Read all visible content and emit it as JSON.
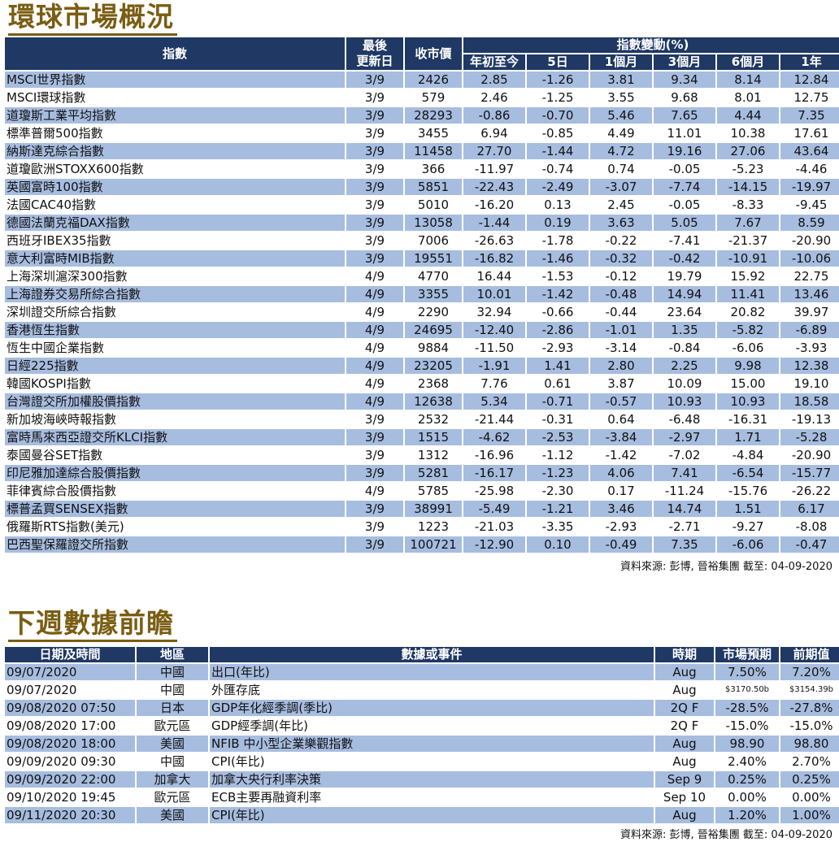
{
  "market": {
    "title": "環球市場概況",
    "headers": {
      "index": "指數",
      "last_update": "最後更新日",
      "last_update_l1": "最後",
      "last_update_l2": "更新日",
      "close": "收市價",
      "change_group": "指數變動(%)",
      "ytd": "年初至今",
      "d5": "5日",
      "m1": "1個月",
      "m3": "3個月",
      "m6": "6個月",
      "y1": "1年"
    },
    "rows": [
      [
        "MSCI世界指數",
        "3/9",
        "2426",
        "2.85",
        "-1.26",
        "3.81",
        "9.34",
        "8.14",
        "12.84"
      ],
      [
        "MSCI環球指數",
        "3/9",
        "579",
        "2.46",
        "-1.25",
        "3.55",
        "9.68",
        "8.01",
        "12.75"
      ],
      [
        "道瓊斯工業平均指數",
        "3/9",
        "28293",
        "-0.86",
        "-0.70",
        "5.46",
        "7.65",
        "4.44",
        "7.35"
      ],
      [
        "標準普爾500指數",
        "3/9",
        "3455",
        "6.94",
        "-0.85",
        "4.49",
        "11.01",
        "10.38",
        "17.61"
      ],
      [
        "納斯達克綜合指數",
        "3/9",
        "11458",
        "27.70",
        "-1.44",
        "4.72",
        "19.16",
        "27.06",
        "43.64"
      ],
      [
        "道瓊歐洲STOXX600指數",
        "3/9",
        "366",
        "-11.97",
        "-0.74",
        "0.74",
        "-0.05",
        "-5.23",
        "-4.46"
      ],
      [
        "英國富時100指數",
        "3/9",
        "5851",
        "-22.43",
        "-2.49",
        "-3.07",
        "-7.74",
        "-14.15",
        "-19.97"
      ],
      [
        "法國CAC40指數",
        "3/9",
        "5010",
        "-16.20",
        "0.13",
        "2.45",
        "-0.05",
        "-8.33",
        "-9.45"
      ],
      [
        "德國法蘭克福DAX指數",
        "3/9",
        "13058",
        "-1.44",
        "0.19",
        "3.63",
        "5.05",
        "7.67",
        "8.59"
      ],
      [
        "西班牙IBEX35指數",
        "3/9",
        "7006",
        "-26.63",
        "-1.78",
        "-0.22",
        "-7.41",
        "-21.37",
        "-20.90"
      ],
      [
        "意大利富時MIB指數",
        "3/9",
        "19551",
        "-16.82",
        "-1.46",
        "-0.32",
        "-0.42",
        "-10.91",
        "-10.06"
      ],
      [
        "上海深圳滬深300指數",
        "4/9",
        "4770",
        "16.44",
        "-1.53",
        "-0.12",
        "19.79",
        "15.92",
        "22.75"
      ],
      [
        "上海證券交易所綜合指數",
        "4/9",
        "3355",
        "10.01",
        "-1.42",
        "-0.48",
        "14.94",
        "11.41",
        "13.46"
      ],
      [
        "深圳證交所綜合指數",
        "4/9",
        "2290",
        "32.94",
        "-0.66",
        "-0.44",
        "23.64",
        "20.82",
        "39.97"
      ],
      [
        "香港恆生指數",
        "4/9",
        "24695",
        "-12.40",
        "-2.86",
        "-1.01",
        "1.35",
        "-5.82",
        "-6.89"
      ],
      [
        "恆生中國企業指數",
        "4/9",
        "9884",
        "-11.50",
        "-2.93",
        "-3.14",
        "-0.84",
        "-6.06",
        "-3.93"
      ],
      [
        "日經225指數",
        "4/9",
        "23205",
        "-1.91",
        "1.41",
        "2.80",
        "2.25",
        "9.98",
        "12.38"
      ],
      [
        "韓國KOSPI指數",
        "4/9",
        "2368",
        "7.76",
        "0.61",
        "3.87",
        "10.09",
        "15.00",
        "19.10"
      ],
      [
        "台灣證交所加權股價指數",
        "4/9",
        "12638",
        "5.34",
        "-0.71",
        "-0.57",
        "10.93",
        "10.93",
        "18.58"
      ],
      [
        "新加坡海峽時報指數",
        "3/9",
        "2532",
        "-21.44",
        "-0.31",
        "0.64",
        "-6.48",
        "-16.31",
        "-19.13"
      ],
      [
        "富時馬來西亞證交所KLCI指數",
        "3/9",
        "1515",
        "-4.62",
        "-2.53",
        "-3.84",
        "-2.97",
        "1.71",
        "-5.28"
      ],
      [
        "泰國曼谷SET指數",
        "3/9",
        "1312",
        "-16.96",
        "-1.12",
        "-1.42",
        "-7.02",
        "-4.84",
        "-20.90"
      ],
      [
        "印尼雅加達綜合股價指數",
        "3/9",
        "5281",
        "-16.17",
        "-1.23",
        "4.06",
        "7.41",
        "-6.54",
        "-15.77"
      ],
      [
        "菲律賓綜合股價指數",
        "4/9",
        "5785",
        "-25.98",
        "-2.30",
        "0.17",
        "-11.24",
        "-15.76",
        "-26.22"
      ],
      [
        "標普孟買SENSEX指數",
        "3/9",
        "38991",
        "-5.49",
        "-1.21",
        "3.46",
        "14.74",
        "1.51",
        "6.17"
      ],
      [
        "俄羅斯RTS指數(美元)",
        "3/9",
        "1223",
        "-21.03",
        "-3.35",
        "-2.93",
        "-2.71",
        "-9.27",
        "-8.08"
      ],
      [
        "巴西聖保羅證交所指數",
        "3/9",
        "100721",
        "-12.90",
        "0.10",
        "-0.49",
        "7.35",
        "-6.06",
        "-0.47"
      ]
    ],
    "source": "資料來源: 彭博, 晉裕集團 截至: 04-09-2020"
  },
  "calendar": {
    "title": "下週數據前瞻",
    "headers": {
      "datetime": "日期及時間",
      "region": "地區",
      "event": "數據或事件",
      "period": "時期",
      "forecast": "市場預期",
      "previous": "前期值"
    },
    "rows": [
      [
        "09/07/2020",
        "中國",
        "出口(年比)",
        "Aug",
        "7.50%",
        "7.20%"
      ],
      [
        "09/07/2020",
        "中國",
        "外匯存底",
        "Aug",
        "$3170.50b",
        "$3154.39b"
      ],
      [
        "09/08/2020 07:50",
        "日本",
        "GDP年化經季調(季比)",
        "2Q F",
        "-28.5%",
        "-27.8%"
      ],
      [
        "09/08/2020 17:00",
        "歐元區",
        "GDP經季調(年比)",
        "2Q F",
        "-15.0%",
        "-15.0%"
      ],
      [
        "09/08/2020 18:00",
        "美國",
        "NFIB 中小型企業樂觀指數",
        "Aug",
        "98.90",
        "98.80"
      ],
      [
        "09/09/2020 09:30",
        "中國",
        "CPI(年比)",
        "Aug",
        "2.40%",
        "2.70%"
      ],
      [
        "09/09/2020 22:00",
        "加拿大",
        "加拿大央行利率決策",
        "Sep 9",
        "0.25%",
        "0.25%"
      ],
      [
        "09/10/2020 19:45",
        "歐元區",
        "ECB主要再融資利率",
        "Sep 10",
        "0.00%",
        "0.00%"
      ],
      [
        "09/11/2020 20:30",
        "美國",
        "CPI(年比)",
        "Aug",
        "1.20%",
        "1.00%"
      ]
    ],
    "source": "資料來源: 彭博, 晉裕集團 截至: 04-09-2020"
  }
}
